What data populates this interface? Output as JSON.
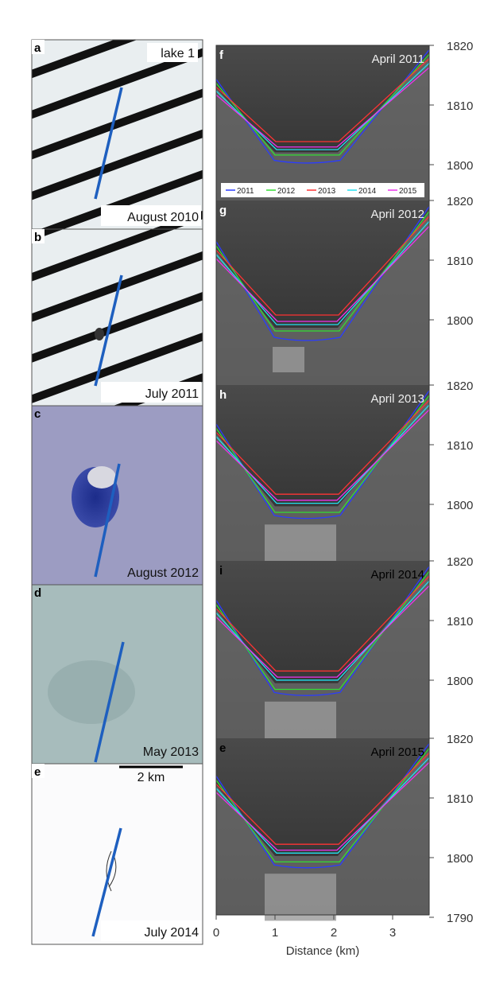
{
  "panels_left": [
    {
      "letter": "a",
      "date": "August 2010",
      "note": "lake 1"
    },
    {
      "letter": "b",
      "date": "July 2011"
    },
    {
      "letter": "c",
      "date": "August 2012"
    },
    {
      "letter": "d",
      "date": "May 2013"
    },
    {
      "letter": "e",
      "date": "July 2014",
      "scale": "2 km"
    }
  ],
  "panels_right": [
    {
      "letter": "f",
      "date": "April 2011",
      "yticks": [
        "1820",
        "1810",
        "1800"
      ]
    },
    {
      "letter": "g",
      "date": "April 2012",
      "yticks": [
        "1820",
        "1810",
        "1800"
      ]
    },
    {
      "letter": "h",
      "date": "April 2013",
      "yticks": [
        "1820",
        "1810",
        "1800"
      ]
    },
    {
      "letter": "i",
      "date": "April 2014",
      "yticks": [
        "1820",
        "1810",
        "1800"
      ]
    },
    {
      "letter": "e",
      "date": "April 2015",
      "yticks": [
        "1820",
        "1810",
        "1800",
        "1790"
      ]
    }
  ],
  "legend": [
    "2011",
    "2012",
    "2013",
    "2014",
    "2015"
  ],
  "xticks": [
    "0",
    "1",
    "2",
    "3"
  ],
  "xlabel": "Distance (km)"
}
